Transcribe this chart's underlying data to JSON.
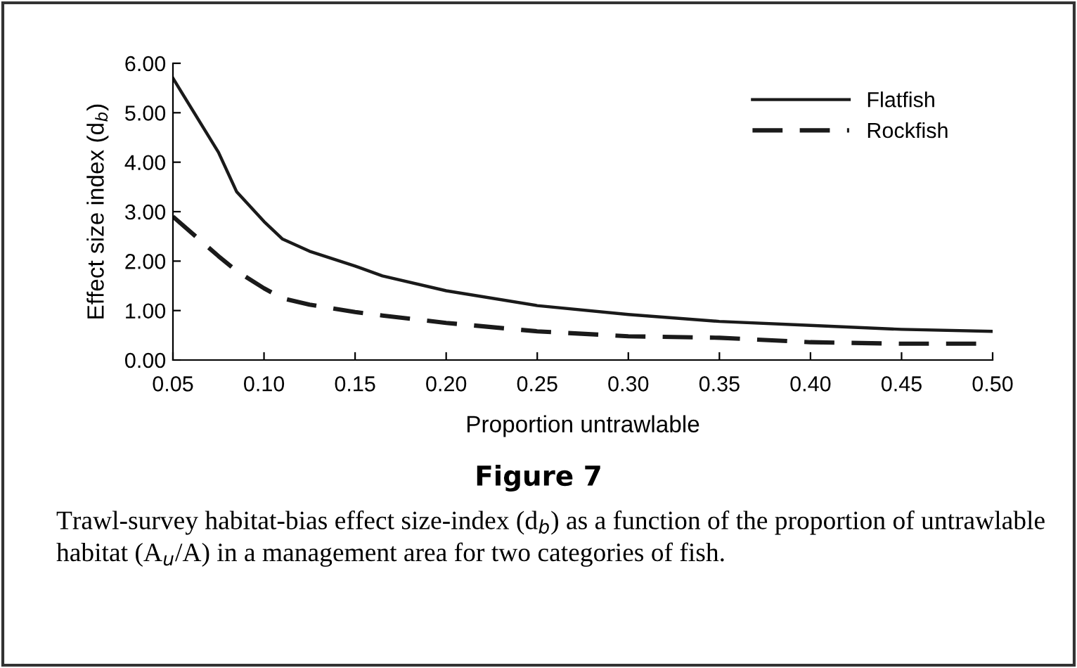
{
  "chart_data": {
    "type": "line",
    "title": "Figure 7",
    "xlabel": "Proportion untrawlable",
    "ylabel": "Effect size index (d$_{b}$)",
    "annotations": [
      "Trawl-survey habitat-bias effect size-index (d$_{b}$) as a function of the proportion of untrawlable habitat (A$_{u}$/A) in a management area for two categories of fish."
    ],
    "x": [
      0.05,
      0.075,
      0.085,
      0.1,
      0.11,
      0.125,
      0.15,
      0.165,
      0.2,
      0.25,
      0.3,
      0.35,
      0.4,
      0.45,
      0.5
    ],
    "series": [
      {
        "name": "Flatfish",
        "color": "#1a1a1a",
        "line_style": "solid",
        "values": [
          5.7,
          4.2,
          3.4,
          2.8,
          2.45,
          2.2,
          1.9,
          1.7,
          1.4,
          1.1,
          0.92,
          0.78,
          0.7,
          0.62,
          0.58
        ]
      },
      {
        "name": "Rockfish",
        "color": "#1a1a1a",
        "line_style": "dashed",
        "values": [
          2.9,
          2.1,
          1.8,
          1.45,
          1.25,
          1.12,
          0.97,
          0.9,
          0.75,
          0.58,
          0.48,
          0.45,
          0.36,
          0.33,
          0.33
        ]
      }
    ],
    "xlim": [
      0.05,
      0.5
    ],
    "xticks": [
      {
        "value": 0.05,
        "label": "0.05"
      },
      {
        "value": 0.1,
        "label": "0.10"
      },
      {
        "value": 0.15,
        "label": "0.15"
      },
      {
        "value": 0.2,
        "label": "0.20"
      },
      {
        "value": 0.25,
        "label": "0.25"
      },
      {
        "value": 0.3,
        "label": "0.30"
      },
      {
        "value": 0.35,
        "label": "0.35"
      },
      {
        "value": 0.4,
        "label": "0.40"
      },
      {
        "value": 0.45,
        "label": "0.45"
      },
      {
        "value": 0.5,
        "label": "0.50"
      }
    ],
    "ylim": [
      0,
      6
    ],
    "yticks": [
      {
        "value": 0,
        "label": "0.00"
      },
      {
        "value": 1,
        "label": "1.00"
      },
      {
        "value": 2,
        "label": "2.00"
      },
      {
        "value": 3,
        "label": "3.00"
      },
      {
        "value": 4,
        "label": "4.00"
      },
      {
        "value": 5,
        "label": "5.00"
      },
      {
        "value": 6,
        "label": "6.00"
      }
    ],
    "grid": false,
    "legend": "top right",
    "marker": "none"
  }
}
